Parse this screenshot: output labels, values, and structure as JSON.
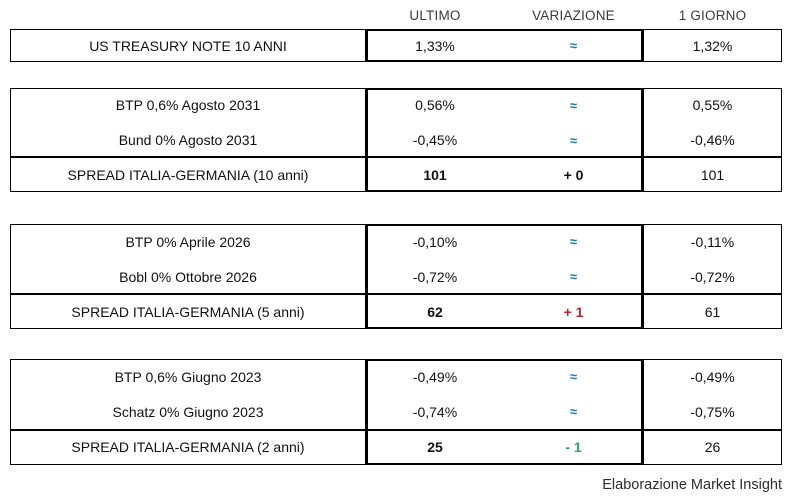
{
  "chart_data": {
    "type": "table",
    "title": "",
    "columns": [
      "ULTIMO",
      "VARIAZIONE",
      "1 GIORNO"
    ],
    "sections": [
      {
        "rows": [
          {
            "label": "US TREASURY NOTE 10 ANNI",
            "ultimo": "1,33%",
            "variazione": "≈",
            "giorno": "1,32%",
            "direction": "flat"
          }
        ]
      },
      {
        "rows": [
          {
            "label": "BTP 0,6% Agosto 2031",
            "ultimo": "0,56%",
            "variazione": "≈",
            "giorno": "0,55%",
            "direction": "flat"
          },
          {
            "label": "Bund 0% Agosto 2031",
            "ultimo": "-0,45%",
            "variazione": "≈",
            "giorno": "-0,46%",
            "direction": "flat"
          },
          {
            "label": "SPREAD ITALIA-GERMANIA (10 anni)",
            "ultimo": "101",
            "variazione": "+ 0",
            "giorno": "101",
            "direction": "zero"
          }
        ]
      },
      {
        "rows": [
          {
            "label": "BTP 0% Aprile 2026",
            "ultimo": "-0,10%",
            "variazione": "≈",
            "giorno": "-0,11%",
            "direction": "flat"
          },
          {
            "label": "Bobl 0% Ottobre 2026",
            "ultimo": "-0,72%",
            "variazione": "≈",
            "giorno": "-0,72%",
            "direction": "flat"
          },
          {
            "label": "SPREAD ITALIA-GERMANIA (5 anni)",
            "ultimo": "62",
            "variazione": "+ 1",
            "giorno": "61",
            "direction": "up"
          }
        ]
      },
      {
        "rows": [
          {
            "label": "BTP 0,6% Giugno 2023",
            "ultimo": "-0,49%",
            "variazione": "≈",
            "giorno": "-0,49%",
            "direction": "flat"
          },
          {
            "label": "Schatz 0% Giugno 2023",
            "ultimo": "-0,74%",
            "variazione": "≈",
            "giorno": "-0,75%",
            "direction": "flat"
          },
          {
            "label": "SPREAD ITALIA-GERMANIA (2 anni)",
            "ultimo": "25",
            "variazione": "- 1",
            "giorno": "26",
            "direction": "down"
          }
        ]
      }
    ],
    "source": "Elaborazione Market Insight"
  },
  "colors": {
    "flat_blue": "#21759C",
    "up_red": "#B22730",
    "down_green": "#2EA266",
    "zero_black": "#111111",
    "border": "#000000"
  }
}
